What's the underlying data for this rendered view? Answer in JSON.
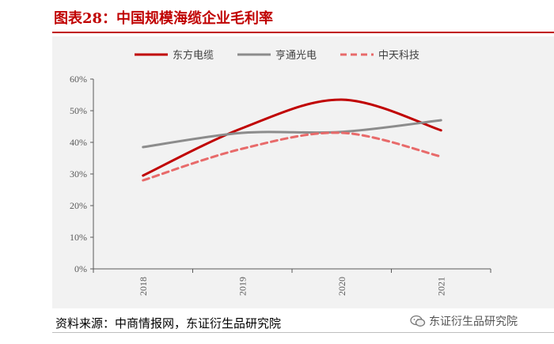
{
  "header": {
    "title": "图表28：中国规模海缆企业毛利率"
  },
  "chart_data": {
    "type": "line",
    "categories": [
      "2018",
      "2019",
      "2020",
      "2021"
    ],
    "series": [
      {
        "name": "东方电缆",
        "values": [
          29.5,
          44.5,
          53.5,
          43.8
        ],
        "color": "#c00000",
        "dash": false
      },
      {
        "name": "亨通光电",
        "values": [
          38.5,
          43.0,
          43.3,
          47.0
        ],
        "color": "#8c8c8c",
        "dash": false
      },
      {
        "name": "中天科技",
        "values": [
          28.0,
          38.0,
          43.0,
          35.5
        ],
        "color": "#e86a6a",
        "dash": true
      }
    ],
    "ylim": [
      0,
      60
    ],
    "yticks": [
      "0%",
      "10%",
      "20%",
      "30%",
      "40%",
      "50%",
      "60%"
    ],
    "legend_position": "top",
    "grid": false
  },
  "footer": {
    "source": "资料来源：中商情报网，东证衍生品研究院",
    "watermark": "东证衍生品研究院"
  }
}
